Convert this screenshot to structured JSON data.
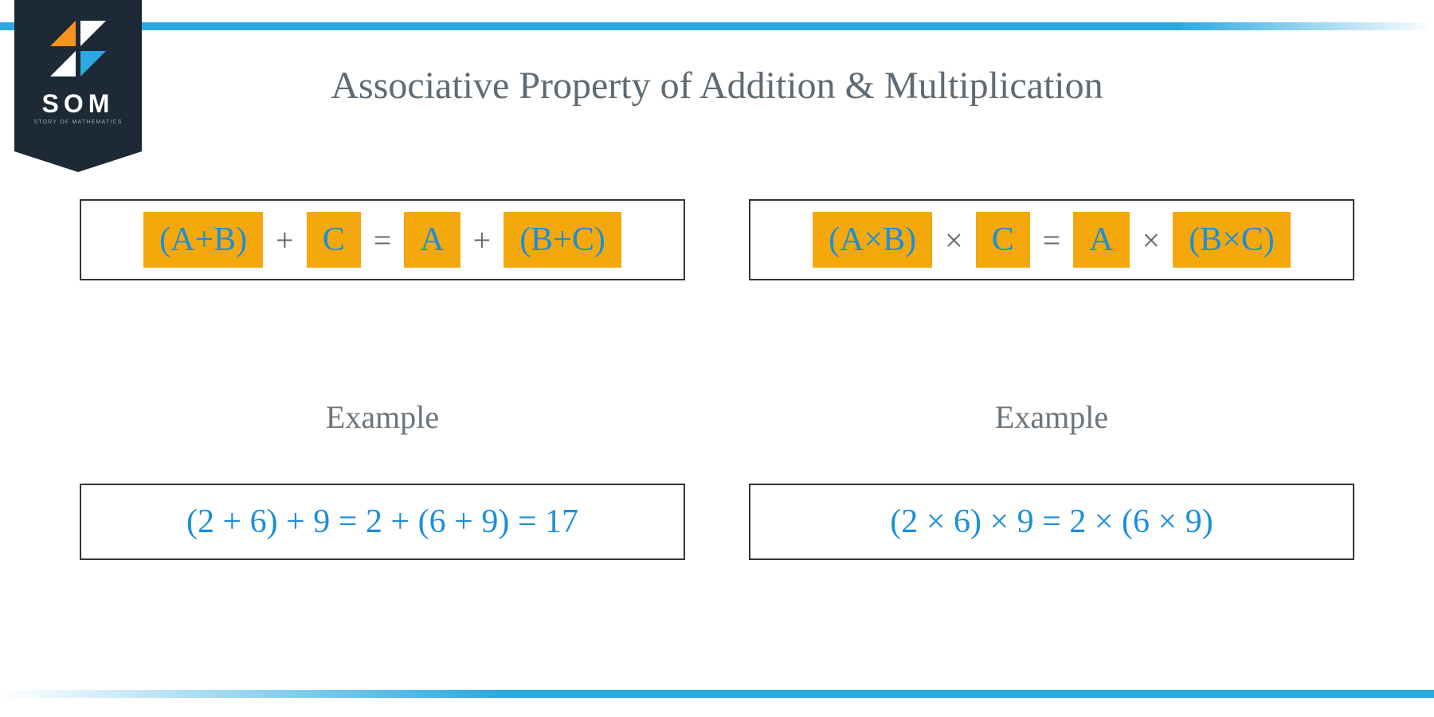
{
  "colors": {
    "brand_blue": "#2aa9e0",
    "formula_text": "#1a8fdb",
    "chip_bg": "#f5a80c",
    "title_gray": "#5f6a72",
    "box_border": "#323638",
    "badge_bg": "#1d2934",
    "logo_orange": "#f7941d",
    "white": "#ffffff"
  },
  "typography": {
    "title_fontsize": 48,
    "formula_fontsize": 42,
    "example_label_fontsize": 40,
    "logo_text_fontsize": 32,
    "logo_sub_fontsize": 7
  },
  "logo": {
    "text": "SOM",
    "subtitle": "STORY OF MATHEMATICS"
  },
  "title": "Associative Property of Addition & Multiplication",
  "formulas": {
    "addition": {
      "lhs_group": "(A+B)",
      "op1": "+",
      "lhs_single": "C",
      "equals": "=",
      "rhs_single": "A",
      "op2": "+",
      "rhs_group": "(B+C)"
    },
    "multiplication": {
      "lhs_group": "(A×B)",
      "op1": "×",
      "lhs_single": "C",
      "equals": "=",
      "rhs_single": "A",
      "op2": "×",
      "rhs_group": "(B×C)"
    }
  },
  "examples": {
    "label": "Example",
    "addition": "(2 + 6) + 9  = 2 + (6 + 9) = 17",
    "multiplication": "(2 × 6) × 9 = 2 × (6 × 9)"
  }
}
